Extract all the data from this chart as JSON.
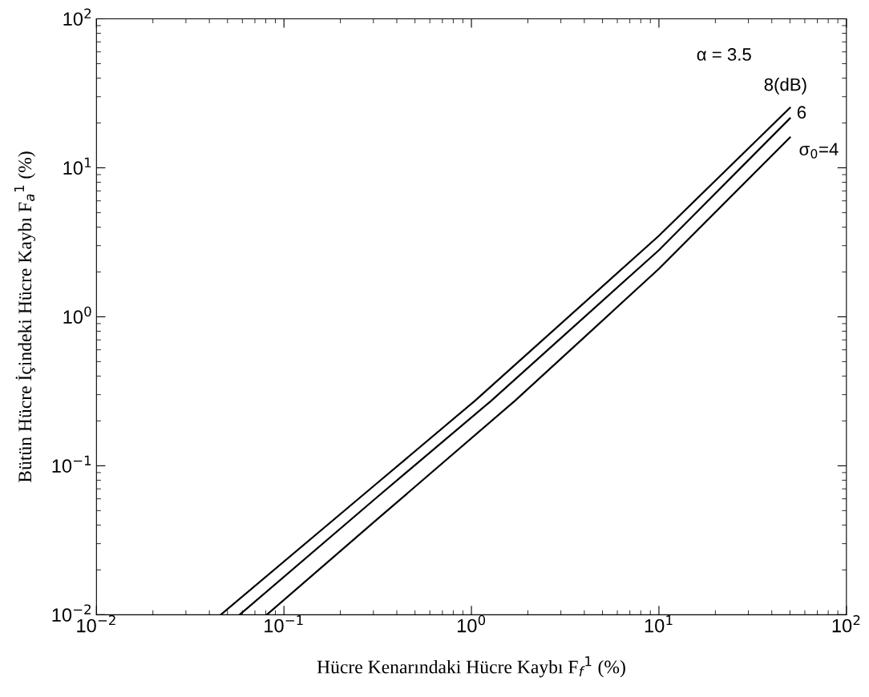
{
  "chart_data": {
    "type": "line",
    "xlabel": "Hücre Kenarındaki Hücre Kaybı F$_{f}$$^{1}$ (%)",
    "ylabel": "Bütün Hücre İçindeki Hücre Kaybı F$_{a}$$^{1}$ (%)",
    "log": "xy",
    "xlim": [
      0.01,
      100
    ],
    "ylim": [
      0.01,
      100
    ],
    "xticks": [
      {
        "value": 0.01,
        "label": "10$^{−2}$"
      },
      {
        "value": 0.1,
        "label": "10$^{−1}$"
      },
      {
        "value": 1,
        "label": "10$^{0}$"
      },
      {
        "value": 10,
        "label": "10$^{1}$"
      },
      {
        "value": 100,
        "label": "10$^{2}$"
      }
    ],
    "yticks": [
      {
        "value": 0.01,
        "label": "10$^{−2}$"
      },
      {
        "value": 0.1,
        "label": "10$^{−1}$"
      },
      {
        "value": 1,
        "label": "10$^{0}$"
      },
      {
        "value": 10,
        "label": "10$^{1}$"
      },
      {
        "value": 100,
        "label": "10$^{2}$"
      }
    ],
    "grid": false,
    "legend": "top right",
    "marker": "none",
    "line_style": "solid",
    "annotations": [
      "α = 3.5"
    ],
    "series": [
      {
        "name": "8(dB)",
        "color": "#000000",
        "x": [
          0.046,
          0.316,
          1.04,
          10,
          50
        ],
        "values": [
          0.01,
          0.077,
          0.272,
          3.5,
          25.3
        ]
      },
      {
        "name": "6",
        "color": "#000000",
        "x": [
          0.058,
          0.316,
          1.27,
          10,
          50
        ],
        "values": [
          0.01,
          0.062,
          0.272,
          2.8,
          21.5
        ]
      },
      {
        "name": "σ$_{0}$=4",
        "color": "#000000",
        "x": [
          0.081,
          0.316,
          1.7,
          10,
          50
        ],
        "values": [
          0.01,
          0.044,
          0.272,
          2.1,
          16
        ]
      }
    ]
  }
}
